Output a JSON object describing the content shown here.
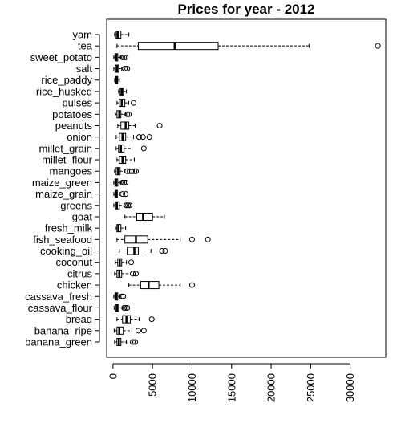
{
  "chart_data": {
    "type": "boxplot",
    "orientation": "horizontal",
    "title": "Prices for year -  2012",
    "xlabel": "",
    "ylabel": "",
    "xlim": [
      -800,
      34500
    ],
    "x_ticks": [
      0,
      5000,
      10000,
      15000,
      20000,
      25000,
      30000
    ],
    "x_tick_labels": [
      "0",
      "5000",
      "10000",
      "15000",
      "20000",
      "25000",
      "30000"
    ],
    "grid": false,
    "legend": "none",
    "box_fill": "#ffffff",
    "stroke_color": "#000000",
    "categories": [
      "banana_green",
      "banana_ripe",
      "bread",
      "cassava_flour",
      "cassava_fresh",
      "chicken",
      "citrus",
      "coconut",
      "cooking_oil",
      "fish_seafood",
      "fresh_milk",
      "goat",
      "greens",
      "maize_grain",
      "maize_green",
      "mangoes",
      "millet_flour",
      "millet_grain",
      "onion",
      "peanuts",
      "potatoes",
      "pulses",
      "rice_husked",
      "rice_paddy",
      "salt",
      "sweet_potato",
      "tea",
      "yam"
    ],
    "boxes": [
      {
        "category": "banana_green",
        "min": 200,
        "q1": 500,
        "median": 750,
        "q3": 1000,
        "max": 1700,
        "outliers": [
          2500,
          2800
        ]
      },
      {
        "category": "banana_ripe",
        "min": 150,
        "q1": 500,
        "median": 800,
        "q3": 1300,
        "max": 2400,
        "outliers": [
          3200,
          3900
        ]
      },
      {
        "category": "bread",
        "min": 500,
        "q1": 1200,
        "median": 1700,
        "q3": 2200,
        "max": 3300,
        "outliers": [
          4900
        ]
      },
      {
        "category": "cassava_flour",
        "min": 150,
        "q1": 300,
        "median": 500,
        "q3": 700,
        "max": 1200,
        "outliers": [
          1400,
          1600,
          1800
        ]
      },
      {
        "category": "cassava_fresh",
        "min": 100,
        "q1": 250,
        "median": 400,
        "q3": 600,
        "max": 900,
        "outliers": [
          1100,
          1300
        ]
      },
      {
        "category": "chicken",
        "min": 2000,
        "q1": 3500,
        "median": 4500,
        "q3": 5800,
        "max": 8500,
        "outliers": [
          10000
        ]
      },
      {
        "category": "citrus",
        "min": 200,
        "q1": 500,
        "median": 800,
        "q3": 1100,
        "max": 1900,
        "outliers": [
          2500,
          2900
        ]
      },
      {
        "category": "coconut",
        "min": 300,
        "q1": 600,
        "median": 850,
        "q3": 1100,
        "max": 1700,
        "outliers": [
          2300
        ]
      },
      {
        "category": "cooking_oil",
        "min": 800,
        "q1": 1800,
        "median": 2700,
        "q3": 3200,
        "max": 4800,
        "outliers": [
          6200,
          6600
        ]
      },
      {
        "category": "fish_seafood",
        "min": 500,
        "q1": 1500,
        "median": 2900,
        "q3": 4400,
        "max": 8500,
        "outliers": [
          10000,
          12000
        ]
      },
      {
        "category": "fresh_milk",
        "min": 300,
        "q1": 500,
        "median": 700,
        "q3": 1000,
        "max": 1600,
        "outliers": []
      },
      {
        "category": "goat",
        "min": 1500,
        "q1": 3000,
        "median": 3800,
        "q3": 5000,
        "max": 6500,
        "outliers": []
      },
      {
        "category": "greens",
        "min": 100,
        "q1": 300,
        "median": 500,
        "q3": 800,
        "max": 1400,
        "outliers": [
          1700,
          1900,
          2100
        ]
      },
      {
        "category": "maize_grain",
        "min": 100,
        "q1": 250,
        "median": 400,
        "q3": 550,
        "max": 900,
        "outliers": [
          1200,
          1600
        ]
      },
      {
        "category": "maize_green",
        "min": 100,
        "q1": 250,
        "median": 400,
        "q3": 600,
        "max": 1000,
        "outliers": [
          1200,
          1400,
          1600
        ]
      },
      {
        "category": "mangoes",
        "min": 200,
        "q1": 400,
        "median": 650,
        "q3": 900,
        "max": 1500,
        "outliers": [
          1800,
          2100,
          2400,
          2700,
          2900
        ]
      },
      {
        "category": "millet_flour",
        "min": 500,
        "q1": 800,
        "median": 1200,
        "q3": 1600,
        "max": 2700,
        "outliers": []
      },
      {
        "category": "millet_grain",
        "min": 400,
        "q1": 700,
        "median": 1000,
        "q3": 1400,
        "max": 2400,
        "outliers": [
          3900
        ]
      },
      {
        "category": "onion",
        "min": 400,
        "q1": 800,
        "median": 1200,
        "q3": 1600,
        "max": 2600,
        "outliers": [
          3300,
          3800,
          4600
        ]
      },
      {
        "category": "peanuts",
        "min": 600,
        "q1": 1000,
        "median": 1600,
        "q3": 2000,
        "max": 2800,
        "outliers": [
          5900
        ]
      },
      {
        "category": "potatoes",
        "min": 300,
        "q1": 500,
        "median": 800,
        "q3": 1000,
        "max": 1600,
        "outliers": [
          1800,
          2000
        ]
      },
      {
        "category": "pulses",
        "min": 500,
        "q1": 800,
        "median": 1100,
        "q3": 1500,
        "max": 2000,
        "outliers": [
          2600
        ]
      },
      {
        "category": "rice_husked",
        "min": 700,
        "q1": 900,
        "median": 1100,
        "q3": 1300,
        "max": 1700,
        "outliers": []
      },
      {
        "category": "rice_paddy",
        "min": 200,
        "q1": 300,
        "median": 450,
        "q3": 600,
        "max": 800,
        "outliers": []
      },
      {
        "category": "salt",
        "min": 100,
        "q1": 300,
        "median": 500,
        "q3": 700,
        "max": 1100,
        "outliers": [
          1500,
          1800
        ]
      },
      {
        "category": "sweet_potato",
        "min": 100,
        "q1": 250,
        "median": 400,
        "q3": 600,
        "max": 1000,
        "outliers": [
          1200,
          1400,
          1600
        ]
      },
      {
        "category": "tea",
        "min": 500,
        "q1": 3200,
        "median": 7800,
        "q3": 13300,
        "max": 24800,
        "outliers": [
          33500
        ]
      },
      {
        "category": "yam",
        "min": 200,
        "q1": 400,
        "median": 600,
        "q3": 1000,
        "max": 2000,
        "outliers": []
      }
    ]
  }
}
